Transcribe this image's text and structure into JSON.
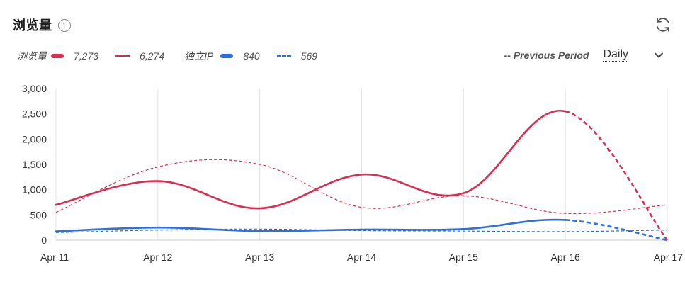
{
  "header": {
    "title": "浏览量",
    "info_icon": "info-icon",
    "refresh_icon": "refresh-icon"
  },
  "legend": {
    "views_label": "浏览量",
    "views_current": "7,273",
    "views_previous": "6,274",
    "ip_label": "独立IP",
    "ip_current": "840",
    "ip_previous": "569"
  },
  "controls": {
    "previous_period_label": "-- Previous Period",
    "period_value": "Daily",
    "chevron_icon": "chevron-down-icon"
  },
  "colors": {
    "views": "#dc2b4e",
    "ip": "#2f6fe0",
    "grid": "#e4e4e4",
    "axis": "#cccccc"
  },
  "chart_data": {
    "type": "line",
    "categories": [
      "Apr 11",
      "Apr 12",
      "Apr 13",
      "Apr 14",
      "Apr 15",
      "Apr 16",
      "Apr 17"
    ],
    "ylim": [
      0,
      3000
    ],
    "yticks": [
      0,
      500,
      1000,
      1500,
      2000,
      2500,
      3000
    ],
    "ytick_labels": [
      "0",
      "500",
      "1,000",
      "1,500",
      "2,000",
      "2,500",
      "3,000"
    ],
    "grid": "vertical",
    "series": [
      {
        "name": "浏览量",
        "period": "current",
        "style": "solid",
        "color": "#dc2b4e",
        "values": [
          700,
          1170,
          630,
          1300,
          930,
          2550,
          0
        ],
        "dashed_from_index": 5
      },
      {
        "name": "浏览量",
        "period": "previous",
        "style": "dashed",
        "color": "#dc2b4e",
        "values": [
          550,
          1450,
          1500,
          650,
          880,
          530,
          700
        ]
      },
      {
        "name": "独立IP",
        "period": "current",
        "style": "solid",
        "color": "#2f6fe0",
        "values": [
          175,
          250,
          180,
          210,
          220,
          400,
          0
        ],
        "dashed_from_index": 5
      },
      {
        "name": "独立IP",
        "period": "previous",
        "style": "dashed",
        "color": "#2f6fe0",
        "values": [
          150,
          200,
          220,
          190,
          180,
          170,
          200
        ]
      }
    ]
  }
}
